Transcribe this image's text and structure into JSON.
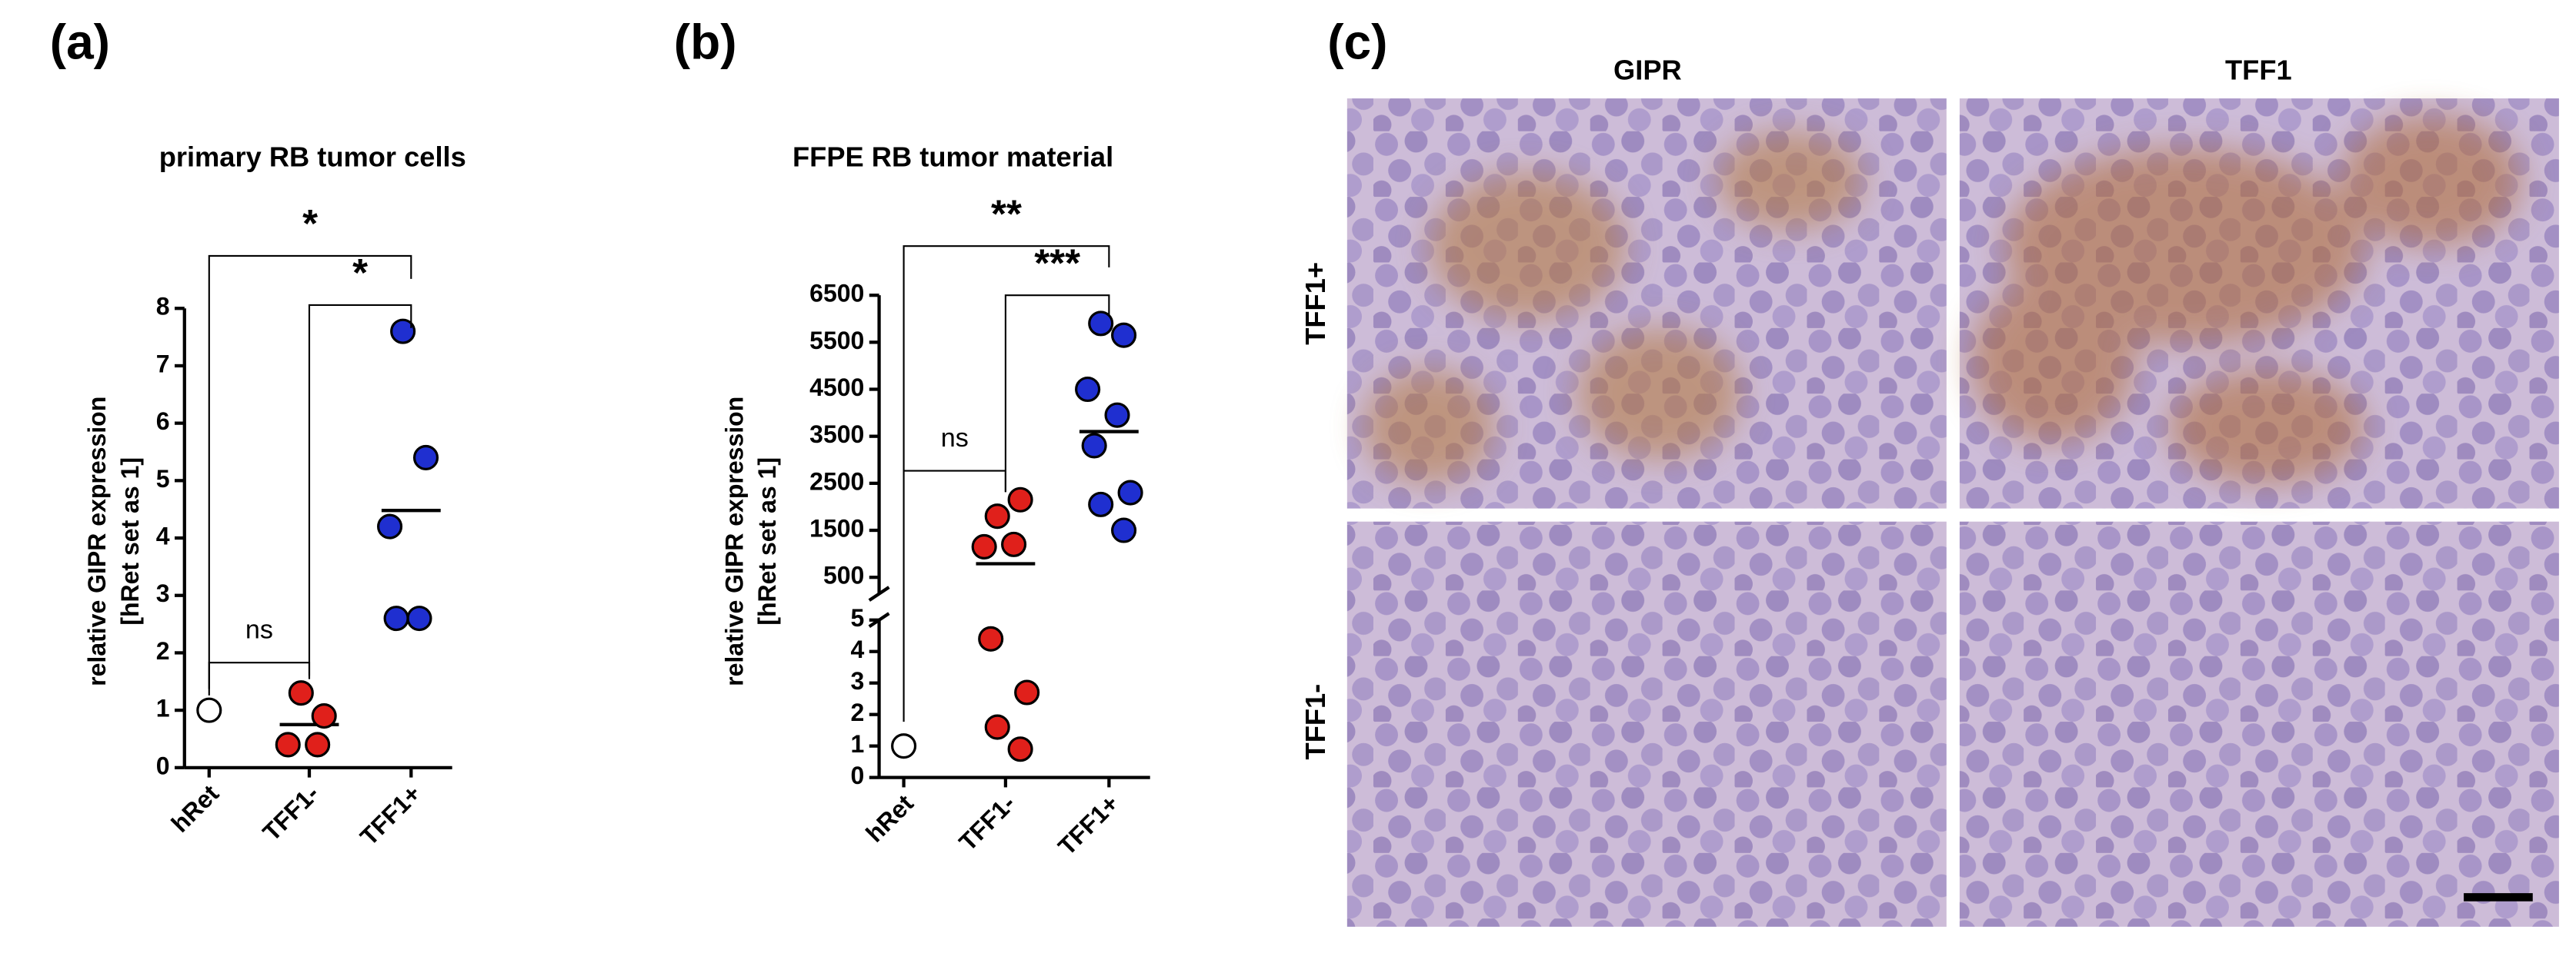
{
  "chart_data": [
    {
      "type": "dot",
      "panel_label": "(a)",
      "title": "primary RB tumor cells",
      "ylabel": [
        "relative GIPR expression",
        "[hRet set as 1]"
      ],
      "categories": [
        "hRet",
        "TFF1-",
        "TFF1+"
      ],
      "colors": [
        "#ffffff",
        "#e0201b",
        "#1f2fd0"
      ],
      "values": [
        [
          1
        ],
        [
          1.3,
          0.9,
          0.4,
          0.4
        ],
        [
          7.6,
          5.4,
          4.2,
          2.6,
          2.6
        ]
      ],
      "means": [
        null,
        0.75,
        4.48
      ],
      "ylim": [
        0,
        8
      ],
      "yticks": [
        0,
        1,
        2,
        3,
        4,
        5,
        6,
        7,
        8
      ],
      "comparisons": [
        {
          "from": "hRet",
          "to": "TFF1-",
          "label": "ns"
        },
        {
          "from": "TFF1-",
          "to": "TFF1+",
          "label": "*"
        },
        {
          "from": "hRet",
          "to": "TFF1+",
          "label": "*"
        }
      ]
    },
    {
      "type": "dot",
      "panel_label": "(b)",
      "title": "FFPE RB tumor material",
      "ylabel": [
        "relative GIPR expression",
        "[hRet set as 1]"
      ],
      "categories": [
        "hRet",
        "TFF1-",
        "TFF1+"
      ],
      "colors": [
        "#ffffff",
        "#e0201b",
        "#1f2fd0"
      ],
      "values": [
        [
          1
        ],
        [
          1800,
          2150,
          1150,
          1200,
          4.4,
          2.7,
          1.6,
          0.9
        ],
        [
          5900,
          5650,
          4500,
          3950,
          3300,
          2300,
          2050,
          1500
        ]
      ],
      "means": [
        null,
        790,
        3600
      ],
      "y_segments": [
        {
          "ylim": [
            0,
            5
          ],
          "yticks": [
            0,
            1,
            2,
            3,
            4,
            5
          ]
        },
        {
          "ylim": [
            150,
            6500
          ],
          "yticks": [
            500,
            1500,
            2500,
            3500,
            4500,
            5500,
            6500
          ]
        }
      ],
      "comparisons": [
        {
          "from": "hRet",
          "to": "TFF1-",
          "label": "ns"
        },
        {
          "from": "TFF1-",
          "to": "TFF1+",
          "label": "***"
        },
        {
          "from": "hRet",
          "to": "TFF1+",
          "label": "**"
        }
      ]
    }
  ],
  "panel_c": {
    "label": "(c)",
    "columns": [
      "GIPR",
      "TFF1"
    ],
    "rows": [
      "TFF1+",
      "TFF1-"
    ]
  }
}
